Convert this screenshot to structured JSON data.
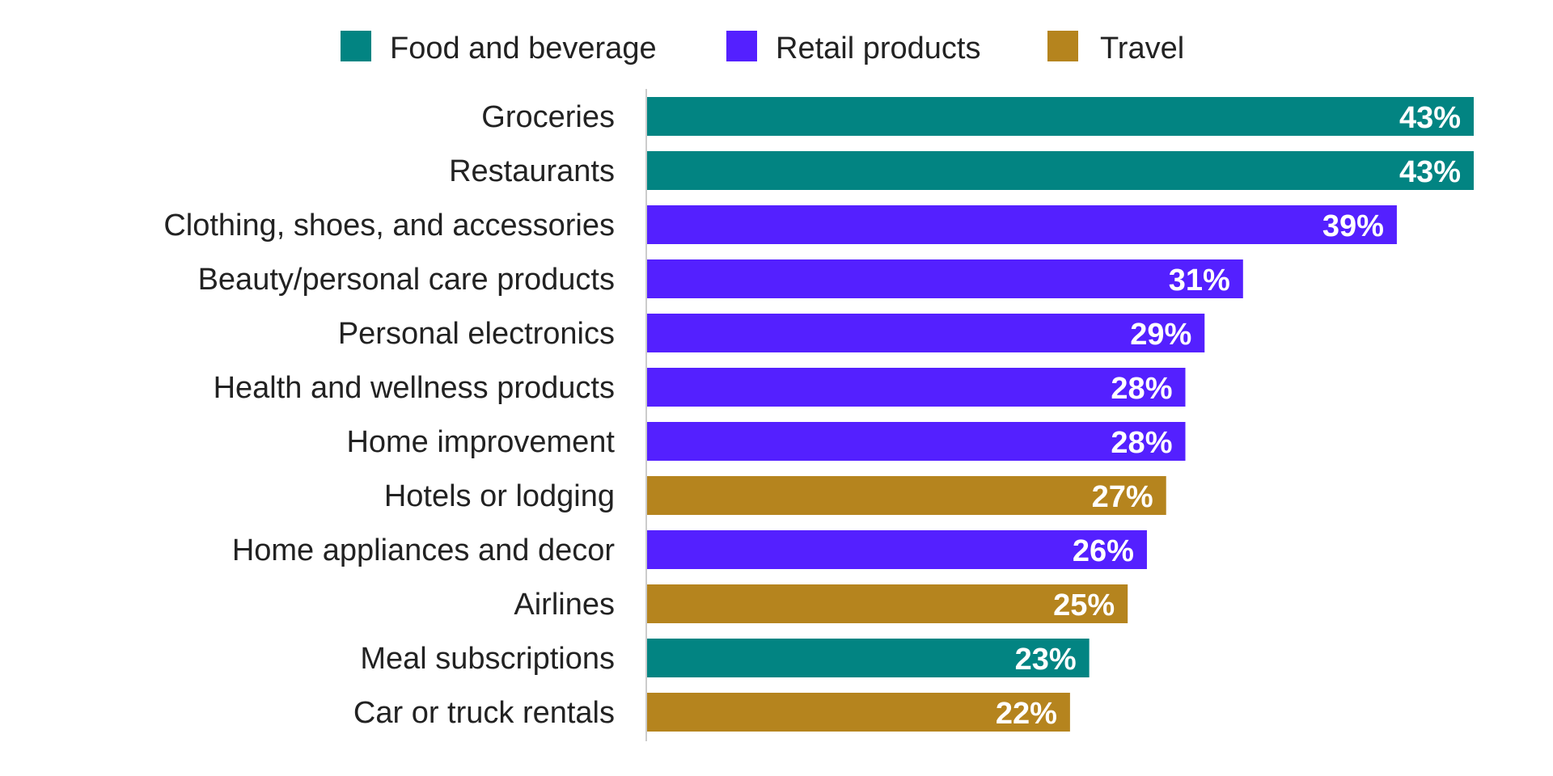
{
  "colors": {
    "food_and_beverage": "#028482",
    "retail_products": "#5420ff",
    "travel": "#b5841e",
    "baseline": "#cccccc"
  },
  "chart_data": {
    "type": "bar",
    "orientation": "horizontal",
    "legend": {
      "position": "top",
      "entries": [
        {
          "key": "food_and_beverage",
          "label": "Food and beverage"
        },
        {
          "key": "retail_products",
          "label": "Retail products"
        },
        {
          "key": "travel",
          "label": "Travel"
        }
      ]
    },
    "categories": [
      "Groceries",
      "Restaurants",
      "Clothing, shoes, and accessories",
      "Beauty/personal care products",
      "Personal electronics",
      "Health and wellness products",
      "Home improvement",
      "Hotels or lodging",
      "Home appliances and decor",
      "Airlines",
      "Meal subscriptions",
      "Car or truck rentals"
    ],
    "values": [
      43,
      43,
      39,
      31,
      29,
      28,
      28,
      27,
      26,
      25,
      23,
      22
    ],
    "value_labels": [
      "43%",
      "43%",
      "39%",
      "31%",
      "29%",
      "28%",
      "28%",
      "27%",
      "26%",
      "25%",
      "23%",
      "22%"
    ],
    "groups": [
      "food_and_beverage",
      "food_and_beverage",
      "retail_products",
      "retail_products",
      "retail_products",
      "retail_products",
      "retail_products",
      "travel",
      "retail_products",
      "travel",
      "food_and_beverage",
      "travel"
    ],
    "xlim": [
      0,
      43
    ],
    "grid": false,
    "title": "",
    "xlabel": "",
    "ylabel": ""
  }
}
